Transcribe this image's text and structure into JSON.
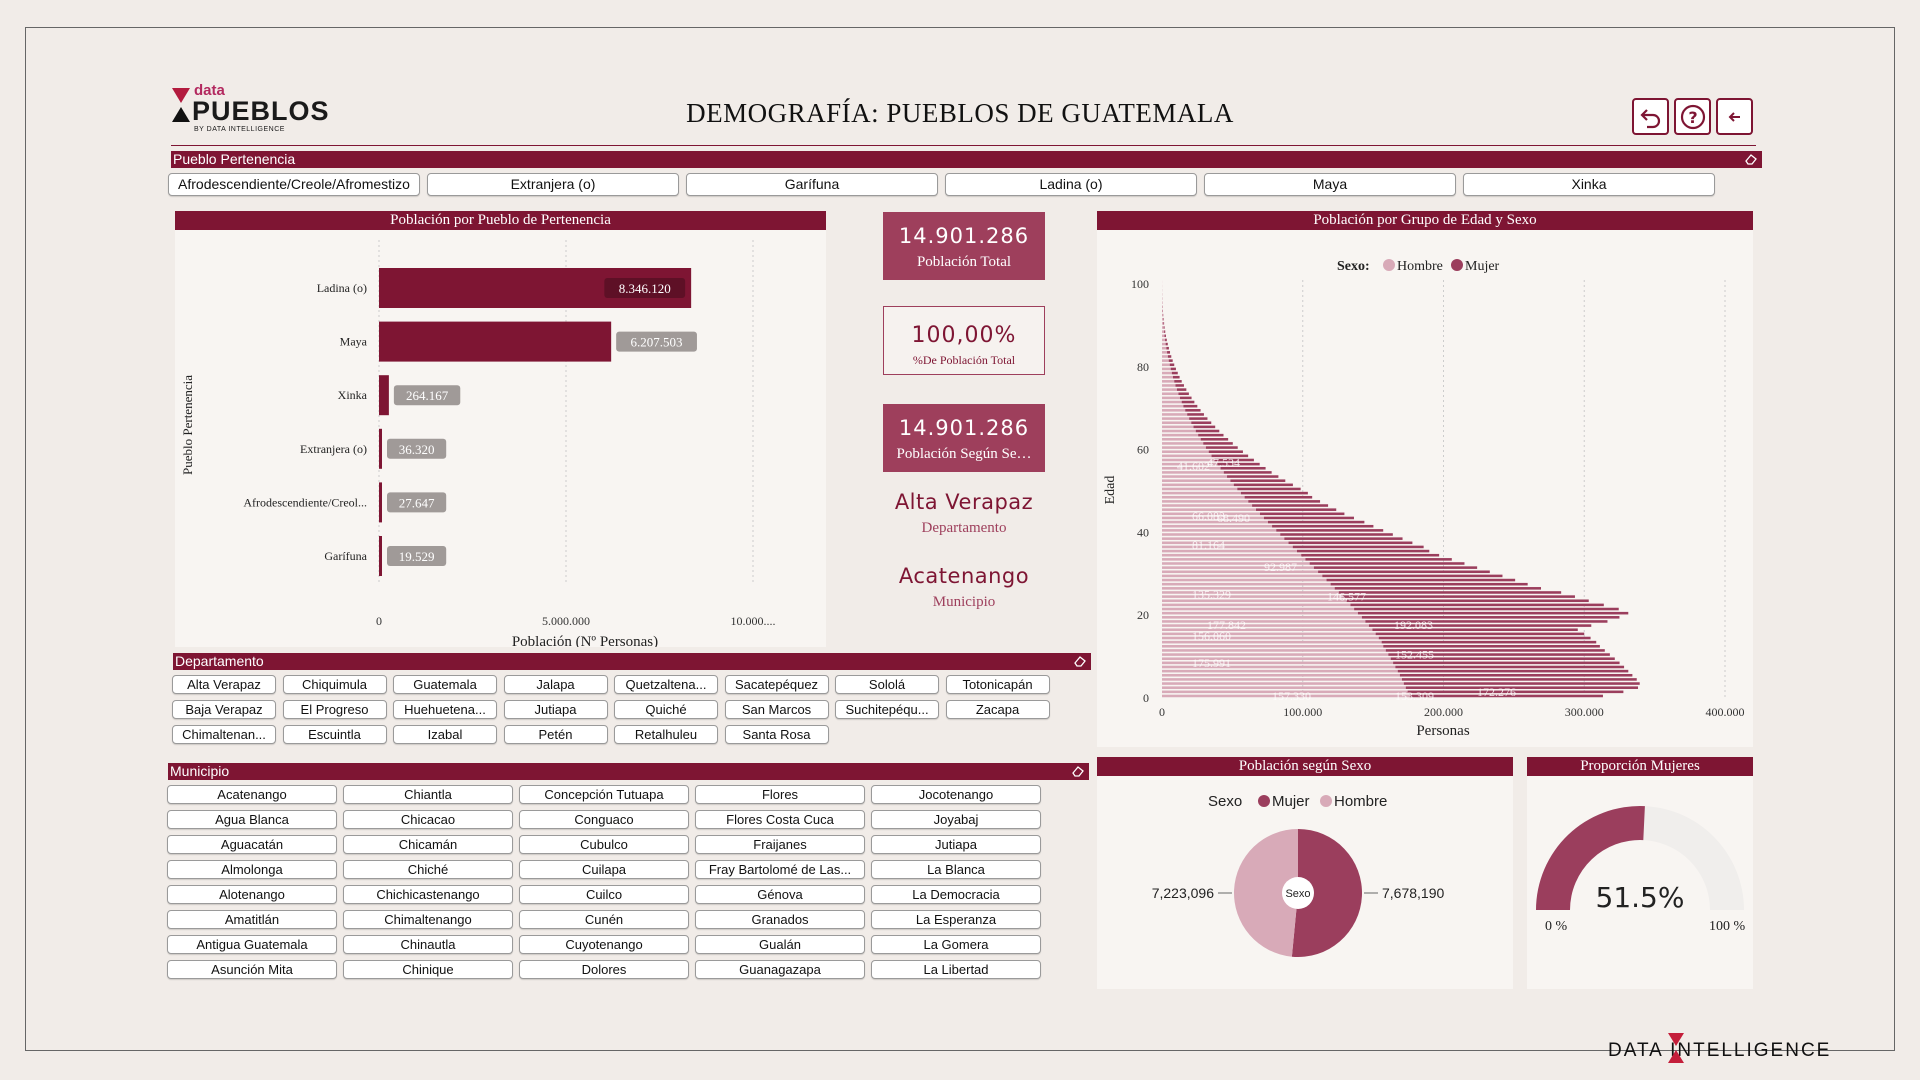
{
  "header": {
    "logo_top": "data",
    "logo_main": "PUEBLOS",
    "logo_sub": "BY DATA INTELLIGENCE",
    "title": "DEMOGRAFÍA: PUEBLOS DE GUATEMALA",
    "buttons": [
      {
        "name": "undo-icon"
      },
      {
        "name": "help-icon"
      },
      {
        "name": "back-arrow-icon"
      }
    ]
  },
  "pueblo_filter": {
    "label": "Pueblo Pertenencia",
    "options": [
      "Afrodescendiente/Creole/Afromestizo",
      "Extranjera (o)",
      "Garífuna",
      "Ladina (o)",
      "Maya",
      "Xinka"
    ]
  },
  "bar_panel": {
    "title": "Población por Pueblo de Pertenencia"
  },
  "kpis": {
    "total_value": "14.901.286",
    "total_label": "Población Total",
    "pct_value": "100,00%",
    "pct_label": "%De Población Total",
    "sexo_value": "14.901.286",
    "sexo_label": "Población Según Se…",
    "depto_value": "Alta Verapaz",
    "depto_label": "Departamento",
    "muni_value": "Acatenango",
    "muni_label": "Municipio"
  },
  "pyramid_panel": {
    "title": "Población por Grupo de Edad y Sexo",
    "legend_title": "Sexo:",
    "legend": [
      "Hombre",
      "Mujer"
    ]
  },
  "departamento": {
    "label": "Departamento",
    "options": [
      [
        "Alta Verapaz",
        "Chiquimula",
        "Guatemala",
        "Jalapa",
        "Quetzaltena...",
        "Sacatepéquez",
        "Sololá",
        "Totonicapán"
      ],
      [
        "Baja Verapaz",
        "El Progreso",
        "Huehuetena...",
        "Jutiapa",
        "Quiché",
        "San Marcos",
        "Suchitepéqu...",
        "Zacapa"
      ],
      [
        "Chimaltenan...",
        "Escuintla",
        "Izabal",
        "Petén",
        "Retalhuleu",
        "Santa Rosa"
      ]
    ]
  },
  "municipio": {
    "label": "Municipio",
    "columns": [
      [
        "Acatenango",
        "Agua Blanca",
        "Aguacatán",
        "Almolonga",
        "Alotenango",
        "Amatitlán",
        "Antigua Guatemala",
        "Asunción Mita"
      ],
      [
        "Chiantla",
        "Chicacao",
        "Chicamán",
        "Chiché",
        "Chichicastenango",
        "Chimaltenango",
        "Chinautla",
        "Chinique"
      ],
      [
        "Concepción Tutuapa",
        "Conguaco",
        "Cubulco",
        "Cuilapa",
        "Cuilco",
        "Cunén",
        "Cuyotenango",
        "Dolores"
      ],
      [
        "Flores",
        "Flores Costa Cuca",
        "Fraijanes",
        "Fray Bartolomé de Las...",
        "Génova",
        "Granados",
        "Gualán",
        "Guanagazapa"
      ],
      [
        "Jocotenango",
        "Joyabaj",
        "Jutiapa",
        "La Blanca",
        "La Democracia",
        "La Esperanza",
        "La Gomera",
        "La Libertad"
      ]
    ]
  },
  "sexo_panel": {
    "title": "Población según Sexo",
    "legend_title": "Sexo",
    "legend": [
      "Mujer",
      "Hombre"
    ],
    "center_label": "Sexo"
  },
  "prop_panel": {
    "title": "Proporción Mujeres",
    "value_label": "51.5%",
    "min_label": "0 %",
    "max_label": "100 %"
  },
  "footer": {
    "brand": "DATA INTELLIGENCE"
  },
  "colors": {
    "maroon": "#7e1533",
    "mujer": "#9b3e5d",
    "hombre": "#d8aab8",
    "gray_label": "#a09a98"
  },
  "chart_data": [
    {
      "type": "bar",
      "orientation": "horizontal",
      "categories": [
        "Ladina (o)",
        "Maya",
        "Xinka",
        "Extranjera (o)",
        "Afrodescendiente/Creol...",
        "Garífuna"
      ],
      "values": [
        8346120,
        6207503,
        264167,
        36320,
        27647,
        19529
      ],
      "value_labels": [
        "8.346.120",
        "6.207.503",
        "264.167",
        "36.320",
        "27.647",
        "19.529"
      ],
      "xlabel": "Población (Nº Personas)",
      "ylabel": "Pueblo Pertenencia",
      "xticks": [
        "0",
        "5.000.000",
        "10.000...."
      ],
      "xlim": [
        0,
        11000000
      ]
    },
    {
      "type": "bar",
      "subtype": "population-pyramid-stacked",
      "xlabel": "Personas",
      "ylabel": "Edad",
      "xticks": [
        "0",
        "100.000",
        "200.000",
        "300.000",
        "400.000"
      ],
      "yticks": [
        "0",
        "20",
        "40",
        "60",
        "80",
        "100"
      ],
      "xlim": [
        0,
        400000
      ],
      "ylim": [
        0,
        100
      ],
      "series": [
        {
          "name": "Hombre",
          "values": [
            175991,
            174500,
            173200,
            171800,
            170500,
            169000,
            167500,
            165800,
            164200,
            162500,
            160800,
            159000,
            157200,
            156060,
            154000,
            151800,
            149500,
            147000,
            144500,
            142000,
            139200,
            136500,
            133900,
            131200,
            128400,
            125600,
            122700,
            119800,
            116900,
            113900,
            110900,
            107900,
            104900,
            101900,
            98900,
            95900,
            92900,
            89900,
            86900,
            84000,
            81164,
            78200,
            75300,
            72400,
            69600,
            66800,
            64000,
            61300,
            58700,
            56100,
            53500,
            51000,
            48600,
            46200,
            43900,
            41602,
            39400,
            37300,
            35200,
            33200,
            31200,
            29300,
            27500,
            25700,
            24000,
            22400,
            20800,
            19300,
            17900,
            16500,
            15200,
            14000,
            12800,
            11700,
            10600,
            9600,
            8700,
            7800,
            7000,
            6200,
            5500,
            4800,
            4200,
            3600,
            3100,
            2600,
            2200,
            1800,
            1500,
            1200,
            1000,
            800,
            600,
            450,
            330,
            240,
            170,
            120,
            80,
            50,
            30
          ]
        },
        {
          "name": "Mujer",
          "values": [
            137300,
            153309,
            165000,
            167600,
            166800,
            165200,
            163800,
            162500,
            160900,
            159200,
            157400,
            155600,
            153900,
            152455,
            150500,
            148200,
            145900,
            158000,
            172000,
            183000,
            192083,
            188000,
            180000,
            172000,
            165000,
            158000,
            146577,
            140000,
            134000,
            128000,
            122000,
            116000,
            110000,
            104000,
            98000,
            94000,
            92987,
            88000,
            84000,
            80000,
            76000,
            72000,
            68490,
            64000,
            60000,
            57000,
            54000,
            51000,
            48000,
            47534,
            45000,
            42000,
            39000,
            36500,
            34000,
            32000,
            30000,
            28000,
            26000,
            24300,
            22600,
            21000,
            19500,
            18000,
            16700,
            15400,
            14200,
            13000,
            11900,
            10900,
            9900,
            9000,
            8200,
            7400,
            6700,
            6000,
            5300,
            4700,
            4200,
            3700,
            3200,
            2800,
            2400,
            2100,
            1800,
            1500,
            1200,
            1000,
            800,
            640,
            500,
            380,
            280,
            200,
            140,
            100,
            70,
            45,
            30,
            20,
            10
          ]
        }
      ],
      "data_labels": [
        "175.991",
        "156.060",
        "135.329",
        "81.164",
        "66.083",
        "41.602",
        "153.309",
        "152.455",
        "192.083",
        "146.577",
        "92.987",
        "68.490",
        "47.534",
        "157.330",
        "172.276",
        "177.842"
      ]
    },
    {
      "type": "pie",
      "subtype": "donut",
      "categories": [
        "Mujer",
        "Hombre"
      ],
      "values": [
        7678190,
        7223096
      ],
      "value_labels": [
        "7,678,190",
        "7,223,096"
      ]
    },
    {
      "type": "gauge",
      "value": 51.5,
      "min": 0,
      "max": 100
    }
  ]
}
